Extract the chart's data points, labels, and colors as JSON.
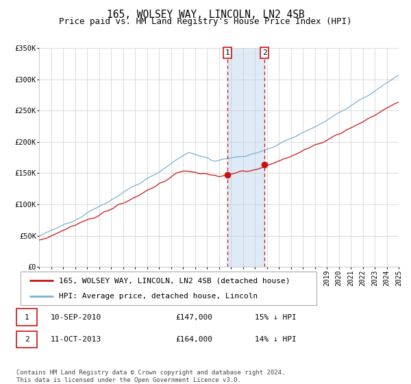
{
  "title": "165, WOLSEY WAY, LINCOLN, LN2 4SB",
  "subtitle": "Price paid vs. HM Land Registry's House Price Index (HPI)",
  "x_start_year": 1995,
  "x_end_year": 2025,
  "y_min": 0,
  "y_max": 350000,
  "y_ticks": [
    0,
    50000,
    100000,
    150000,
    200000,
    250000,
    300000,
    350000
  ],
  "y_tick_labels": [
    "£0",
    "£50K",
    "£100K",
    "£150K",
    "£200K",
    "£250K",
    "£300K",
    "£350K"
  ],
  "hpi_color": "#7aafd4",
  "price_color": "#cc1111",
  "purchase1_date_year": 2010.7,
  "purchase1_price": 147000,
  "purchase2_date_year": 2013.8,
  "purchase2_price": 164000,
  "marker_color": "#cc1111",
  "vline_color": "#cc1111",
  "shade_color": "#deeaf5",
  "legend_label_price": "165, WOLSEY WAY, LINCOLN, LN2 4SB (detached house)",
  "legend_label_hpi": "HPI: Average price, detached house, Lincoln",
  "annotation1_box": "1",
  "annotation2_box": "2",
  "row1_label": "1",
  "row1_date": "10-SEP-2010",
  "row1_price": "£147,000",
  "row1_hpi": "15% ↓ HPI",
  "row2_label": "2",
  "row2_date": "11-OCT-2013",
  "row2_price": "£164,000",
  "row2_hpi": "14% ↓ HPI",
  "footnote": "Contains HM Land Registry data © Crown copyright and database right 2024.\nThis data is licensed under the Open Government Licence v3.0.",
  "background_color": "#ffffff",
  "grid_color": "#cccccc",
  "title_fontsize": 10.5,
  "subtitle_fontsize": 9,
  "tick_fontsize": 7.5,
  "legend_fontsize": 8,
  "footnote_fontsize": 6.5
}
